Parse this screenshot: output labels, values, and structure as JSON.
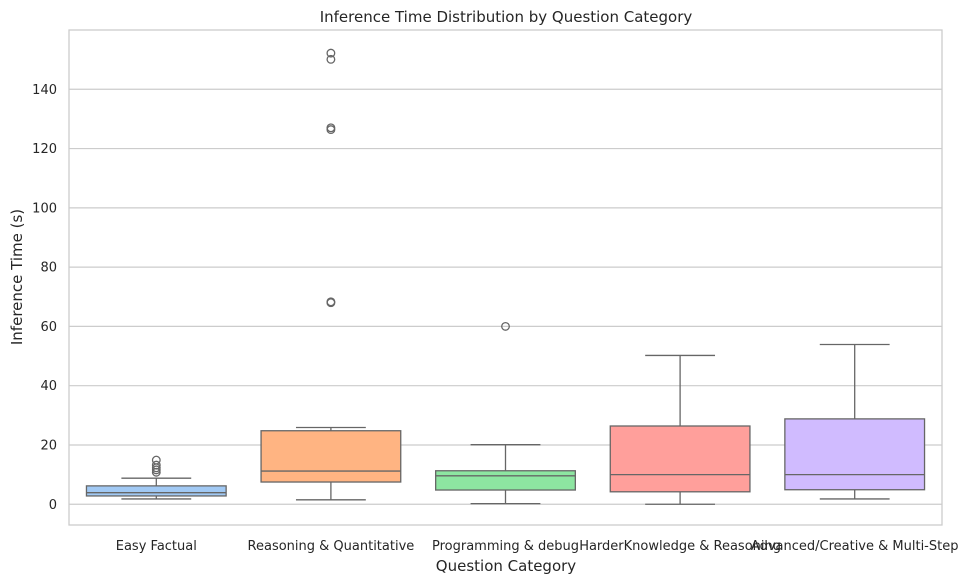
{
  "chart_data": {
    "type": "box",
    "title": "Inference Time Distribution by Question Category",
    "xlabel": "Question Category",
    "ylabel": "Inference Time (s)",
    "ylim": [
      -7,
      160
    ],
    "yticks": [
      0,
      20,
      40,
      60,
      80,
      100,
      120,
      140
    ],
    "grid": "horizontal",
    "categories": [
      "Easy Factual",
      "Reasoning & Quantitative",
      "Programming & debug",
      "HarderKnowledge & Reasoning",
      "Advanced/Creative & Multi-Step"
    ],
    "boxes": [
      {
        "whisker_low": 1.8,
        "q1": 2.8,
        "median": 3.9,
        "q3": 6.2,
        "whisker_high": 8.8,
        "outliers": [
          10.8,
          11.6,
          12.3,
          13.2,
          14.9
        ],
        "color": "#a1c9f4"
      },
      {
        "whisker_low": 1.5,
        "q1": 7.5,
        "median": 11.2,
        "q3": 24.8,
        "whisker_high": 25.9,
        "outliers": [
          68.0,
          68.3,
          126.4,
          127.0,
          150.1,
          152.2
        ],
        "color": "#ffb482"
      },
      {
        "whisker_low": 0.2,
        "q1": 4.8,
        "median": 9.6,
        "q3": 11.3,
        "whisker_high": 20.1,
        "outliers": [
          60.0
        ],
        "color": "#8de5a1"
      },
      {
        "whisker_low": 0.0,
        "q1": 4.2,
        "median": 10.0,
        "q3": 26.4,
        "whisker_high": 50.2,
        "outliers": [],
        "color": "#ff9f9b"
      },
      {
        "whisker_low": 1.8,
        "q1": 4.9,
        "median": 10.0,
        "q3": 28.8,
        "whisker_high": 53.9,
        "outliers": [],
        "color": "#d0bbff"
      }
    ]
  }
}
